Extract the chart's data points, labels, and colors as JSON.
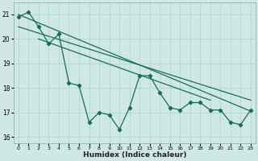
{
  "background_color": "#cfe8e4",
  "grid_color": "#a8d4ce",
  "line_color": "#1a6b5a",
  "xlabel": "Humidex (Indice chaleur)",
  "xlim": [
    -0.5,
    23.5
  ],
  "ylim": [
    15.75,
    21.5
  ],
  "yticks": [
    16,
    17,
    18,
    19,
    20,
    21
  ],
  "xticks": [
    0,
    1,
    2,
    3,
    4,
    5,
    6,
    7,
    8,
    9,
    10,
    11,
    12,
    13,
    14,
    15,
    16,
    17,
    18,
    19,
    20,
    21,
    22,
    23
  ],
  "series_x": [
    0,
    1,
    2,
    3,
    4,
    5,
    6,
    7,
    8,
    9,
    10,
    11,
    12,
    13,
    14,
    15,
    16,
    17,
    18,
    19,
    20,
    21,
    22,
    23
  ],
  "series_y": [
    20.9,
    21.1,
    20.5,
    19.8,
    20.2,
    18.2,
    18.1,
    16.6,
    17.0,
    16.9,
    16.3,
    17.2,
    18.5,
    18.5,
    17.8,
    17.2,
    17.1,
    17.4,
    17.4,
    17.1,
    17.1,
    16.6,
    16.5,
    17.1
  ],
  "trend_lines": [
    {
      "x": [
        0,
        23
      ],
      "y": [
        21.0,
        17.05
      ]
    },
    {
      "x": [
        0,
        23
      ],
      "y": [
        20.5,
        17.5
      ]
    },
    {
      "x": [
        2,
        19
      ],
      "y": [
        20.0,
        17.5
      ]
    }
  ]
}
